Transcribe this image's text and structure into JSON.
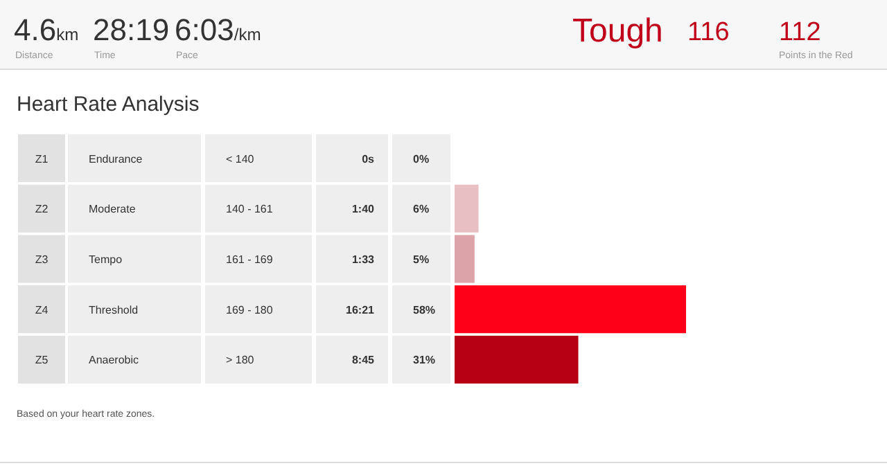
{
  "chart_data": {
    "type": "bar",
    "orientation": "horizontal",
    "title": "Heart Rate Analysis",
    "categories": [
      "Z1",
      "Z2",
      "Z3",
      "Z4",
      "Z5"
    ],
    "values": [
      0,
      6,
      5,
      58,
      31
    ],
    "value_labels": [
      "0%",
      "6%",
      "5%",
      "58%",
      "31%"
    ],
    "colors": [
      "#f0f0f0",
      "#e8bfc3",
      "#dca3a8",
      "#ff0019",
      "#b80014"
    ],
    "annotations": [
      "4.6km",
      "Distance",
      "28:19",
      "Time",
      "6:03/km",
      "Pace",
      "Tough",
      "116",
      "112",
      "Points in the Red",
      "Based on your heart rate zones.",
      "Endurance",
      "< 140",
      "0s",
      "Moderate",
      "140 - 161",
      "1:40",
      "Tempo",
      "161 - 169",
      "1:33",
      "Threshold",
      "169 - 180",
      "16:21",
      "Anaerobic",
      "> 180",
      "8:45"
    ]
  }
}
